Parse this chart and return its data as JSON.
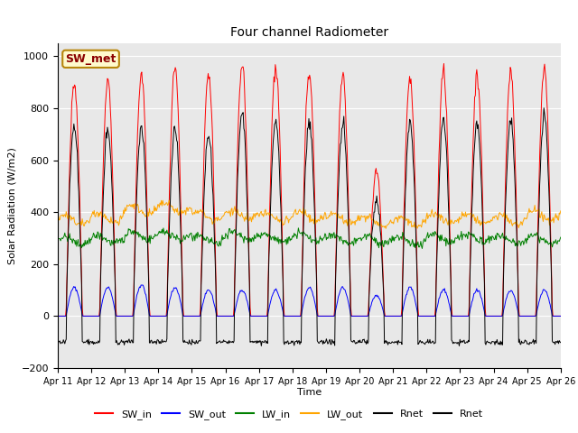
{
  "title": "Four channel Radiometer",
  "xlabel": "Time",
  "ylabel": "Solar Radiation (W/m2)",
  "ylim": [
    -200,
    1050
  ],
  "background_color": "#e8e8e8",
  "station_label": "SW_met",
  "x_tick_labels": [
    "Apr 11",
    "Apr 12",
    "Apr 13",
    "Apr 14",
    "Apr 15",
    "Apr 16",
    "Apr 17",
    "Apr 18",
    "Apr 19",
    "Apr 20",
    "Apr 21",
    "Apr 22",
    "Apr 23",
    "Apr 24",
    "Apr 25",
    "Apr 26"
  ],
  "legend_entries": [
    "SW_in",
    "SW_out",
    "LW_in",
    "LW_out",
    "Rnet",
    "Rnet"
  ],
  "legend_colors": [
    "red",
    "blue",
    "green",
    "orange",
    "black",
    "black"
  ],
  "n_days": 15,
  "hours_per_day": 24,
  "dt_hours": 0.5,
  "SW_in_peaks": [
    900,
    900,
    930,
    950,
    940,
    970,
    960,
    940,
    930,
    560,
    920,
    940,
    930,
    940,
    950
  ],
  "SW_out_peaks": [
    110,
    110,
    120,
    110,
    100,
    100,
    100,
    110,
    110,
    80,
    110,
    100,
    100,
    100,
    100
  ],
  "LW_in_base": [
    290,
    295,
    310,
    310,
    295,
    310,
    300,
    305,
    295,
    290,
    290,
    300,
    300,
    295,
    295
  ],
  "LW_out_base": [
    370,
    380,
    410,
    415,
    385,
    390,
    380,
    385,
    375,
    365,
    365,
    375,
    375,
    370,
    390
  ],
  "Rnet_day_peaks": [
    730,
    720,
    730,
    720,
    700,
    780,
    750,
    750,
    740,
    450,
    740,
    750,
    740,
    750,
    770
  ],
  "Rnet_night_val": -100
}
